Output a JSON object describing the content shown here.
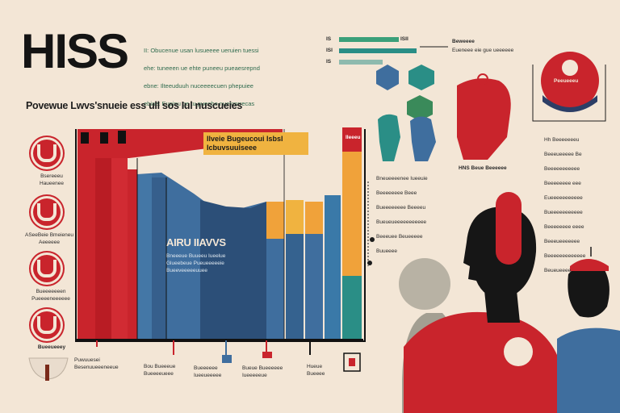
{
  "header": {
    "title": "HISS",
    "blurb_lines": [
      "II: Obucenue usan lusueeee ueruien tuessi",
      "ehe: tuneeen ue ehte puneeu pueaesrepnd",
      "ebne: Ilteeuduuh nuceeeecuen phepuiee",
      "ebiae: Eupinu ge tu pueebe nuekmrrecas"
    ],
    "subtitle": "Povewue Lwvs'snueie ess ull sos Iul nuscueies"
  },
  "left_icons": {
    "labels": [
      "Bsereeeu\nHaueenee",
      "ASeeBeie Bmeieneu\nAeeeeee",
      "Bueeeeeeen\nPueeeeneeeeee",
      "Bueeueeey"
    ]
  },
  "chart": {
    "title_box": "Ilveie Bugeucoui lsbsl\nIcbuvsuuiseee",
    "inner_label": "AIRU IIAVVS",
    "inner_text": "Bneeeue  Buueeu Iueelue\nGlueebeue  Pueueeeeeie\nBueeveeeeeuuee",
    "top_marker": "IIeeeu",
    "bottom_labels": [
      "Puwuuesei\nBesenuueeeneeue",
      "Bou Bueeeue\nBueeeeueee",
      "Bueeeeee\nIueeueeeee",
      "Bueue Bueeeeee\nIueeeeeue",
      "Hueue\nBueeee"
    ],
    "colors": {
      "red": "#c9242c",
      "dark_red": "#a3161e",
      "blue": "#3f6e9e",
      "navy": "#2c4f78",
      "orange": "#f0a23a",
      "teal": "#2a8e86",
      "green": "#3aa07a"
    }
  },
  "right_panel": {
    "legend_items": [
      "IS",
      "ISI",
      "IS"
    ],
    "legend_top_text": "ISII",
    "callout_title": "Beweeee",
    "callout_sub": "Eueneee eie gue ueeeeee",
    "badge_text": "Peeueeeu",
    "mid_text_lines": [
      "Bneueeeenee Iueeuie",
      "Beeeeeeee Beee",
      "Bueeeeeeee Beeeeu",
      "Bueueueeeeeeeeeee",
      "Beeeuee Beueeeee",
      "Buueeee"
    ],
    "caption": "HNS Beue Beeeeee",
    "side_text_lines": [
      "Hh Beeeeeeeu",
      "Beeeueeeee Be",
      "Beeeeeeeeeee",
      "Beeeeeeee eee",
      "Eueeeeeeeeeee",
      "Bueeeeeeeeeee",
      "Beeeeeeee eeee",
      "Beeeueeeeeee",
      "Beeeeeeeeeeeee",
      "Beueueeee"
    ]
  }
}
